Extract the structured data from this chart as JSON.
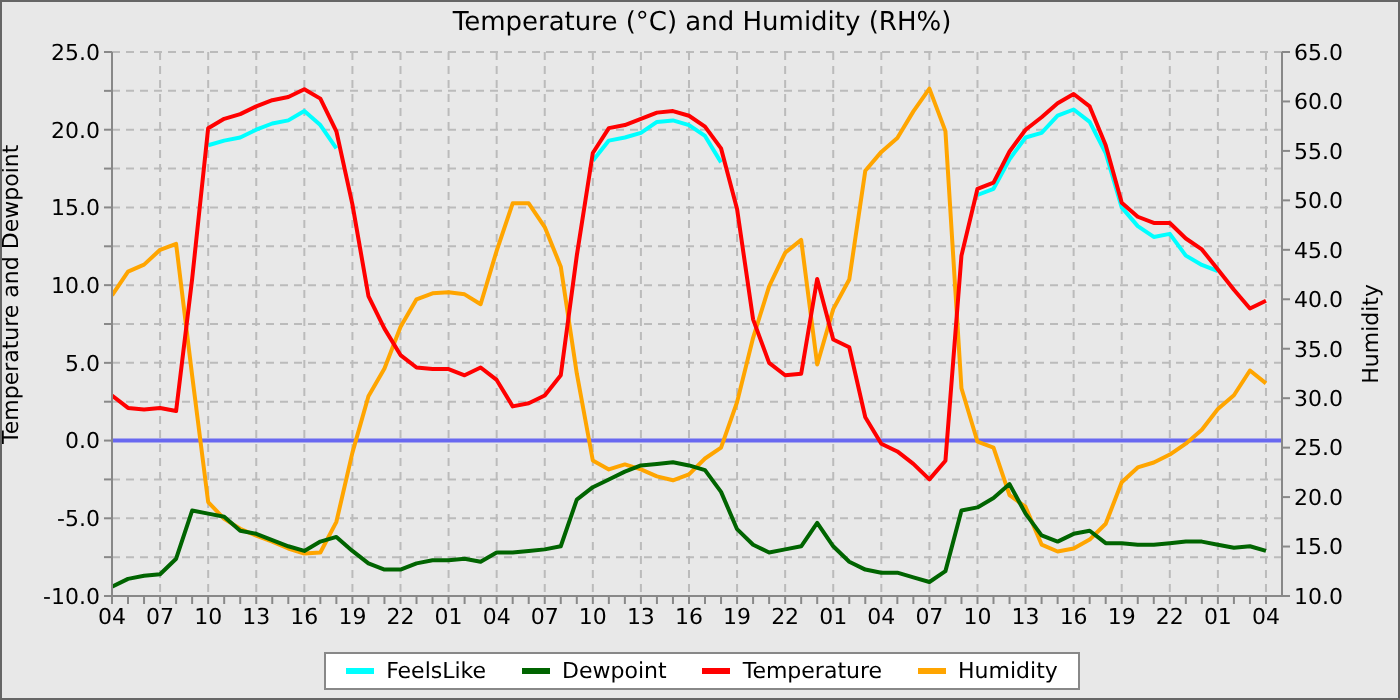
{
  "chart_data": {
    "type": "line",
    "title": "Temperature (°C) and Humidity (RH%)",
    "ylabel": "Temperature and Dewpoint",
    "y2label": "Humidity",
    "categories": [
      "04",
      null,
      null,
      "07",
      null,
      null,
      "10",
      null,
      null,
      "13",
      null,
      null,
      "16",
      null,
      null,
      "19",
      null,
      null,
      "22",
      null,
      null,
      "01",
      null,
      null,
      "04",
      null,
      null,
      "07",
      null,
      null,
      "10",
      null,
      null,
      "13",
      null,
      null,
      "16",
      null,
      null,
      "19",
      null,
      null,
      "22",
      null,
      null,
      "01",
      null,
      null,
      "04",
      null,
      null,
      "07",
      null,
      null,
      "10",
      null,
      null,
      "13",
      null,
      null,
      "16",
      null,
      null,
      "19",
      null,
      null,
      "22",
      null,
      null,
      "01",
      null,
      null,
      "04"
    ],
    "ylim": [
      -10,
      25
    ],
    "yticks": [
      {
        "value": -10,
        "label": "-10.0"
      },
      {
        "value": -7.5,
        "label": null
      },
      {
        "value": -5,
        "label": "-5.0"
      },
      {
        "value": -2.5,
        "label": null
      },
      {
        "value": 0,
        "label": "0.0"
      },
      {
        "value": 2.5,
        "label": null
      },
      {
        "value": 5,
        "label": "5.0"
      },
      {
        "value": 7.5,
        "label": null
      },
      {
        "value": 10,
        "label": "10.0"
      },
      {
        "value": 12.5,
        "label": null
      },
      {
        "value": 15,
        "label": "15.0"
      },
      {
        "value": 17.5,
        "label": null
      },
      {
        "value": 20,
        "label": "20.0"
      },
      {
        "value": 22.5,
        "label": null
      },
      {
        "value": 25,
        "label": "25.0"
      }
    ],
    "y2lim": [
      10,
      65
    ],
    "y2ticks": [
      {
        "value": 10,
        "label": "10.0"
      },
      {
        "value": 15,
        "label": "15.0"
      },
      {
        "value": 20,
        "label": "20.0"
      },
      {
        "value": 25,
        "label": "25.0"
      },
      {
        "value": 30,
        "label": "30.0"
      },
      {
        "value": 35,
        "label": "35.0"
      },
      {
        "value": 40,
        "label": "40.0"
      },
      {
        "value": 45,
        "label": "45.0"
      },
      {
        "value": 50,
        "label": "50.0"
      },
      {
        "value": 55,
        "label": "55.0"
      },
      {
        "value": 60,
        "label": "60.0"
      },
      {
        "value": 65,
        "label": "65.0"
      }
    ],
    "grid": true,
    "legend": "bottom",
    "marker": "none",
    "line_style": "solid",
    "ref_lines": [
      {
        "axis": "y",
        "value": 0,
        "color": "#6868f0"
      }
    ],
    "series": [
      {
        "name": "FeelsLike",
        "color": "#00ffff",
        "values": [
          null,
          null,
          null,
          null,
          null,
          null,
          19.0,
          19.3,
          19.5,
          20.0,
          20.4,
          20.6,
          21.2,
          20.3,
          18.8,
          null,
          null,
          null,
          null,
          null,
          null,
          null,
          null,
          null,
          null,
          null,
          null,
          null,
          null,
          null,
          18.0,
          19.3,
          19.5,
          19.8,
          20.5,
          20.6,
          20.3,
          19.6,
          17.9,
          null,
          null,
          null,
          null,
          null,
          null,
          null,
          null,
          null,
          null,
          null,
          null,
          null,
          null,
          null,
          15.8,
          16.2,
          18.1,
          19.5,
          19.8,
          20.9,
          21.3,
          20.5,
          18.5,
          15.0,
          13.8,
          13.1,
          13.3,
          11.9,
          11.3,
          10.9,
          null,
          null,
          null
        ]
      },
      {
        "name": "Dewpoint",
        "color": "#006400",
        "values": [
          -9.4,
          -8.9,
          -8.7,
          -8.6,
          -7.6,
          -4.5,
          -4.7,
          -4.9,
          -5.8,
          -6.0,
          -6.4,
          -6.8,
          -7.1,
          -6.5,
          -6.2,
          -7.1,
          -7.9,
          -8.3,
          -8.3,
          -7.9,
          -7.7,
          -7.7,
          -7.6,
          -7.8,
          -7.2,
          -7.2,
          -7.1,
          -7.0,
          -6.8,
          -3.8,
          -3.0,
          -2.5,
          -2.0,
          -1.6,
          -1.5,
          -1.4,
          -1.6,
          -1.9,
          -3.3,
          -5.7,
          -6.7,
          -7.2,
          -7.0,
          -6.8,
          -5.3,
          -6.8,
          -7.8,
          -8.3,
          -8.5,
          -8.5,
          -8.8,
          -9.1,
          -8.4,
          -4.5,
          -4.3,
          -3.7,
          -2.8,
          -4.7,
          -6.1,
          -6.5,
          -6.0,
          -5.8,
          -6.6,
          -6.6,
          -6.7,
          -6.7,
          -6.6,
          -6.5,
          -6.5,
          -6.7,
          -6.9,
          -6.8,
          -7.1
        ]
      },
      {
        "name": "Temperature",
        "color": "#ff0000",
        "values": [
          2.9,
          2.1,
          2.0,
          2.1,
          1.9,
          10.4,
          20.1,
          20.7,
          21.0,
          21.5,
          21.9,
          22.1,
          22.6,
          22.0,
          19.9,
          15.2,
          9.3,
          7.2,
          5.5,
          4.7,
          4.6,
          4.6,
          4.2,
          4.7,
          3.9,
          2.2,
          2.4,
          2.9,
          4.2,
          11.9,
          18.5,
          20.1,
          20.3,
          20.7,
          21.1,
          21.2,
          20.9,
          20.2,
          18.8,
          14.9,
          7.8,
          5.0,
          4.2,
          4.3,
          10.4,
          6.5,
          6.0,
          1.5,
          -0.2,
          -0.7,
          -1.5,
          -2.5,
          -1.3,
          11.9,
          16.2,
          16.6,
          18.6,
          20.0,
          20.8,
          21.7,
          22.3,
          21.5,
          19.0,
          15.3,
          14.4,
          14.0,
          14.0,
          13.0,
          12.3,
          11.0,
          9.7,
          8.5,
          9.0
        ]
      },
      {
        "name": "Humidity",
        "color": "#ffa500",
        "axis": "y2",
        "values": [
          40.4,
          42.8,
          43.5,
          45.0,
          45.6,
          32.3,
          19.5,
          17.8,
          16.8,
          16.1,
          15.5,
          14.8,
          14.3,
          14.4,
          17.5,
          24.5,
          30.2,
          33.0,
          37.2,
          40.0,
          40.6,
          40.7,
          40.5,
          39.5,
          44.9,
          49.7,
          49.7,
          47.3,
          43.3,
          32.5,
          23.7,
          22.8,
          23.3,
          22.8,
          22.1,
          21.7,
          22.3,
          23.9,
          25.0,
          29.6,
          36.1,
          41.3,
          44.7,
          46.0,
          33.4,
          39.0,
          42.0,
          53.0,
          54.9,
          56.3,
          59.0,
          61.3,
          57.0,
          31.0,
          25.6,
          25.0,
          20.2,
          19.0,
          15.2,
          14.5,
          14.8,
          15.7,
          17.3,
          21.5,
          23.0,
          23.5,
          24.3,
          25.4,
          26.8,
          28.9,
          30.3,
          32.8,
          31.5
        ]
      }
    ]
  }
}
